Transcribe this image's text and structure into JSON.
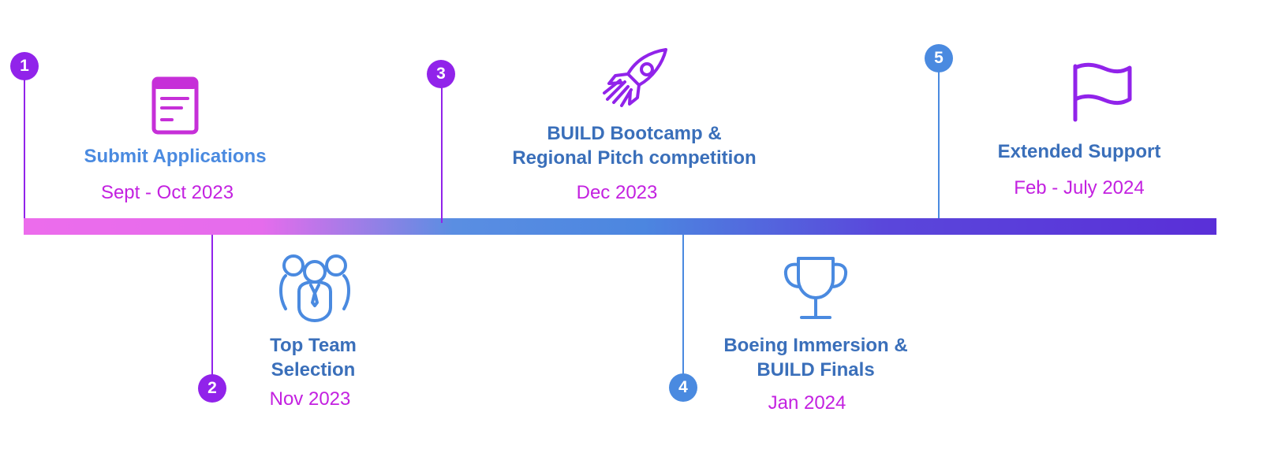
{
  "colors": {
    "purple": "#9123ea",
    "blue": "#4a8ae0",
    "magenta_icon": "#c62fd8",
    "date_text": "#c321e0",
    "title_light_blue": "#4a8ae0",
    "title_dark_blue": "#3a6fba"
  },
  "milestones": [
    {
      "number": "1",
      "title": "Submit Applications",
      "date": "Sept - Oct 2023",
      "icon": "document-icon"
    },
    {
      "number": "2",
      "title_lines": [
        "Top Team",
        "Selection"
      ],
      "date": "Nov 2023",
      "icon": "team-icon"
    },
    {
      "number": "3",
      "title_lines": [
        "BUILD Bootcamp &",
        "Regional Pitch competition"
      ],
      "date": "Dec 2023",
      "icon": "rocket-icon"
    },
    {
      "number": "4",
      "title_lines": [
        "Boeing Immersion &",
        "BUILD Finals"
      ],
      "date": "Jan 2024",
      "icon": "trophy-icon"
    },
    {
      "number": "5",
      "title": "Extended Support",
      "date": "Feb - July 2024",
      "icon": "flag-icon"
    }
  ]
}
